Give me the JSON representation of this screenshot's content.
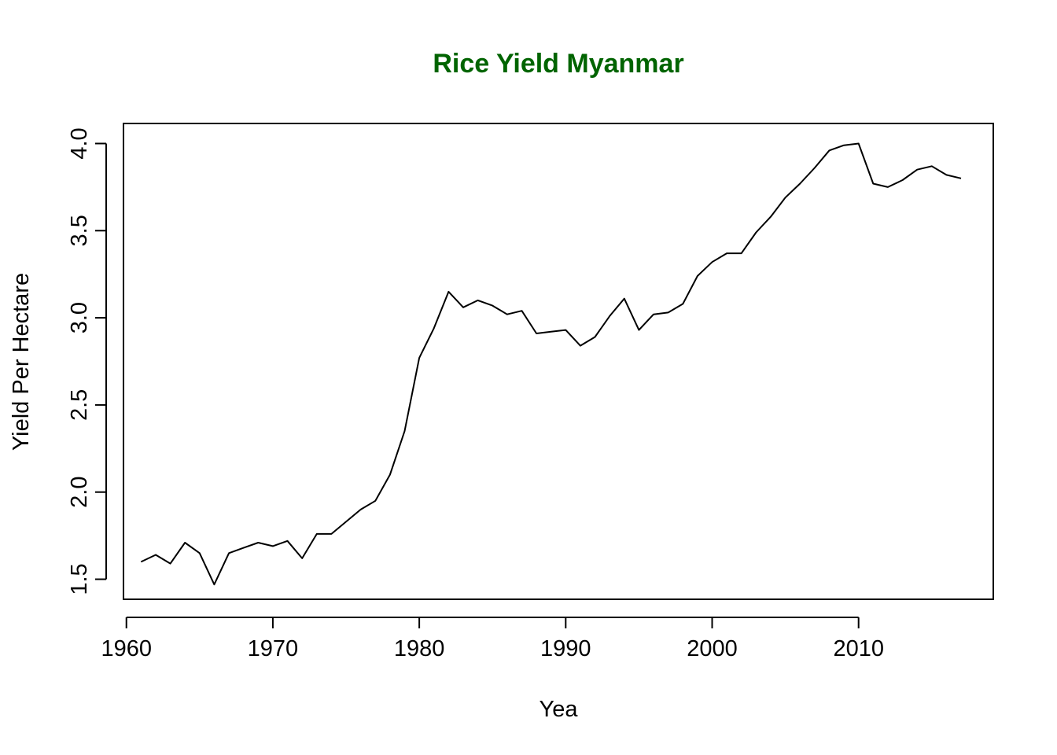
{
  "chart_data": {
    "type": "line",
    "title": "Rice Yield Myanmar",
    "title_color": "#006400",
    "xlabel": "Yea",
    "ylabel": "Yield Per Hectare",
    "xlim": [
      1959.8,
      2019.2
    ],
    "ylim": [
      1.385,
      4.115
    ],
    "x_ticks": [
      1960,
      1970,
      1980,
      1990,
      2000,
      2010
    ],
    "x_tick_labels": [
      "1960",
      "1970",
      "1980",
      "1990",
      "2000",
      "2010"
    ],
    "y_ticks": [
      1.5,
      2.0,
      2.5,
      3.0,
      3.5,
      4.0
    ],
    "y_tick_labels": [
      "1.5",
      "2.0",
      "2.5",
      "3.0",
      "3.5",
      "4.0"
    ],
    "line_color": "#000000",
    "grid": false,
    "series": [
      {
        "x": [
          1961,
          1962,
          1963,
          1964,
          1965,
          1966,
          1967,
          1968,
          1969,
          1970,
          1971,
          1972,
          1973,
          1974,
          1975,
          1976,
          1977,
          1978,
          1979,
          1980,
          1981,
          1982,
          1983,
          1984,
          1985,
          1986,
          1987,
          1988,
          1989,
          1990,
          1991,
          1992,
          1993,
          1994,
          1995,
          1996,
          1997,
          1998,
          1999,
          2000,
          2001,
          2002,
          2003,
          2004,
          2005,
          2006,
          2007,
          2008,
          2009,
          2010,
          2011,
          2012,
          2013,
          2014,
          2015,
          2016,
          2017
        ],
        "y": [
          1.6,
          1.64,
          1.59,
          1.71,
          1.65,
          1.47,
          1.65,
          1.68,
          1.71,
          1.69,
          1.72,
          1.62,
          1.76,
          1.76,
          1.83,
          1.9,
          1.95,
          2.1,
          2.35,
          2.77,
          2.94,
          3.15,
          3.06,
          3.1,
          3.07,
          3.02,
          3.04,
          2.91,
          2.92,
          2.93,
          2.84,
          2.89,
          3.01,
          3.11,
          2.93,
          3.02,
          3.03,
          3.08,
          3.24,
          3.32,
          3.37,
          3.37,
          3.49,
          3.58,
          3.69,
          3.77,
          3.86,
          3.96,
          3.99,
          4.0,
          3.77,
          3.75,
          3.79,
          3.85,
          3.87,
          3.82,
          3.8
        ]
      }
    ]
  }
}
